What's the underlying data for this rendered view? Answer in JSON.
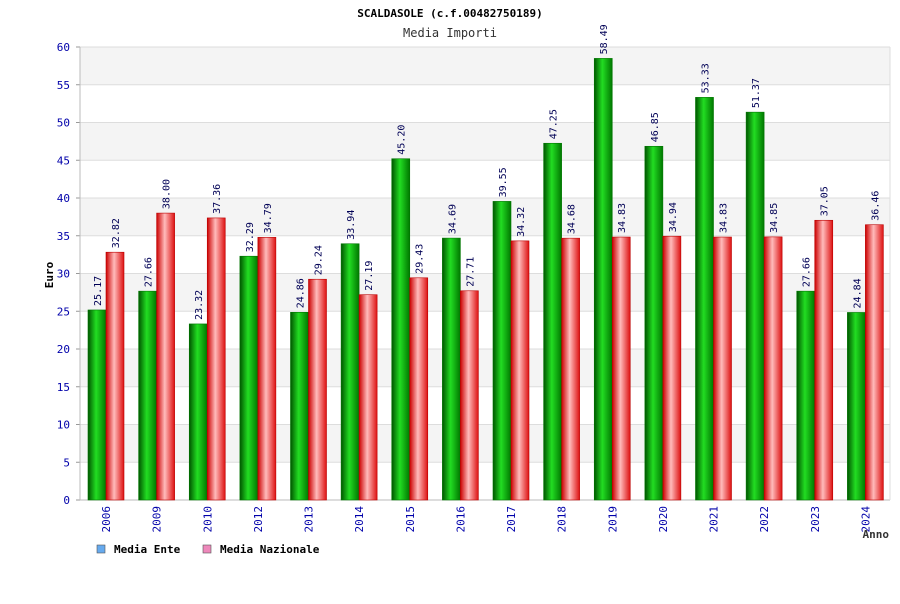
{
  "chart_data": {
    "type": "bar",
    "title": "SCALDASOLE (c.f.00482750189)",
    "subtitle": "Media Importi",
    "xlabel": "Anno",
    "ylabel": "Euro",
    "ylim": [
      0,
      60
    ],
    "yticks": [
      "0",
      "5",
      "10",
      "15",
      "20",
      "25",
      "30",
      "35",
      "40",
      "45",
      "50",
      "55",
      "60"
    ],
    "grid": true,
    "legend_position": "bottom-left",
    "categories": [
      "2006",
      "2009",
      "2010",
      "2012",
      "2013",
      "2014",
      "2015",
      "2016",
      "2017",
      "2018",
      "2019",
      "2020",
      "2021",
      "2022",
      "2023",
      "2024"
    ],
    "series": [
      {
        "name": "Media Ente",
        "color": "#00c000",
        "legend_color": "#66aaee",
        "values": [
          25.17,
          27.66,
          23.32,
          32.29,
          24.86,
          33.94,
          45.2,
          34.69,
          39.55,
          47.25,
          58.49,
          46.85,
          53.33,
          51.37,
          27.66,
          24.84
        ],
        "labels": [
          "25.17",
          "27.66",
          "23.32",
          "32.29",
          "24.86",
          "33.94",
          "45.20",
          "34.69",
          "39.55",
          "47.25",
          "58.49",
          "46.85",
          "53.33",
          "51.37",
          "27.66",
          "24.84"
        ]
      },
      {
        "name": "Media Nazionale",
        "color": "#ee2222",
        "legend_color": "#ee88bb",
        "values": [
          32.82,
          38.0,
          37.36,
          34.79,
          29.24,
          27.19,
          29.43,
          27.71,
          34.32,
          34.68,
          34.83,
          34.94,
          34.83,
          34.85,
          37.05,
          36.46
        ],
        "labels": [
          "32.82",
          "38.00",
          "37.36",
          "34.79",
          "29.24",
          "27.19",
          "29.43",
          "27.71",
          "34.32",
          "34.68",
          "34.83",
          "34.94",
          "34.83",
          "34.85",
          "37.05",
          "36.46"
        ]
      }
    ]
  }
}
